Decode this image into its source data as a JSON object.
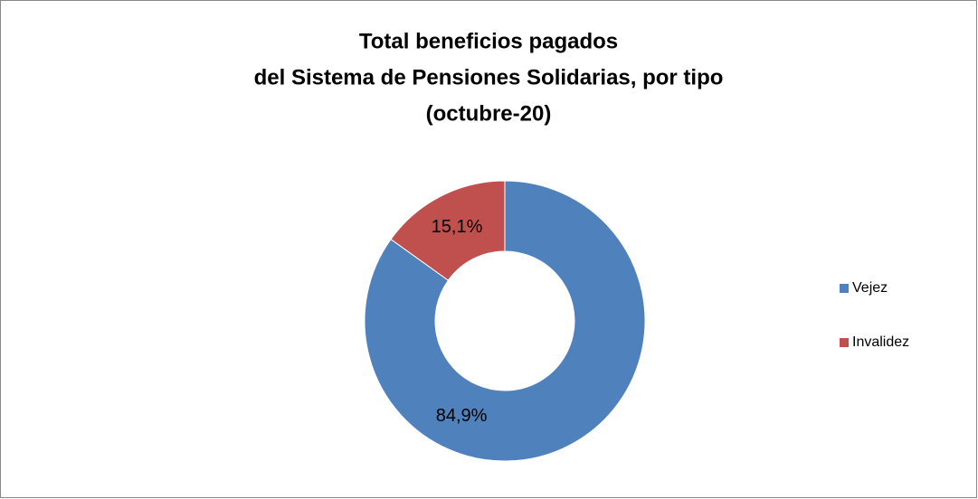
{
  "chart_data": {
    "type": "donut",
    "title": [
      "Total beneficios pagados",
      "del Sistema de Pensiones Solidarias, por tipo",
      "(octubre-20)"
    ],
    "categories": [
      "Vejez",
      "Invalidez"
    ],
    "values": [
      84.9,
      15.1
    ],
    "value_labels": [
      "84,9%",
      "15,1%"
    ],
    "colors": [
      "#4f81bd",
      "#c0504d"
    ],
    "legend": "right"
  }
}
